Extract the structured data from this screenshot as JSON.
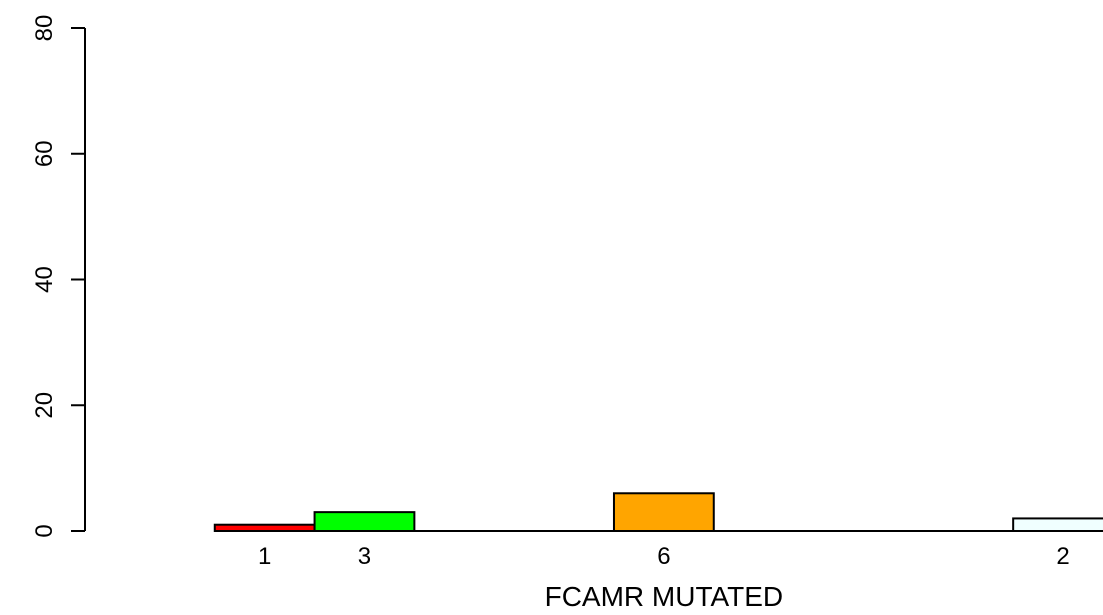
{
  "chart_data": {
    "type": "bar",
    "title": "",
    "xlabel": "FCAMR MUTATED",
    "ylabel": "",
    "ylim": [
      0,
      80
    ],
    "yticks": [
      0,
      20,
      40,
      60,
      80
    ],
    "x_domain": [
      -1.15,
      8.85
    ],
    "grid": false,
    "legend": "none",
    "bars": [
      {
        "label": "1",
        "x_start": 0.0,
        "x_end": 1.0,
        "value": 1,
        "color": "#ff0000"
      },
      {
        "label": "3",
        "x_start": 1.0,
        "x_end": 2.0,
        "value": 3,
        "color": "#00ff00"
      },
      {
        "label": "6",
        "x_start": 4.0,
        "x_end": 5.0,
        "value": 6,
        "color": "#ffa500"
      },
      {
        "label": "2",
        "x_start": 8.0,
        "x_end": 9.0,
        "value": 2,
        "color": "#f0ffff"
      }
    ]
  }
}
